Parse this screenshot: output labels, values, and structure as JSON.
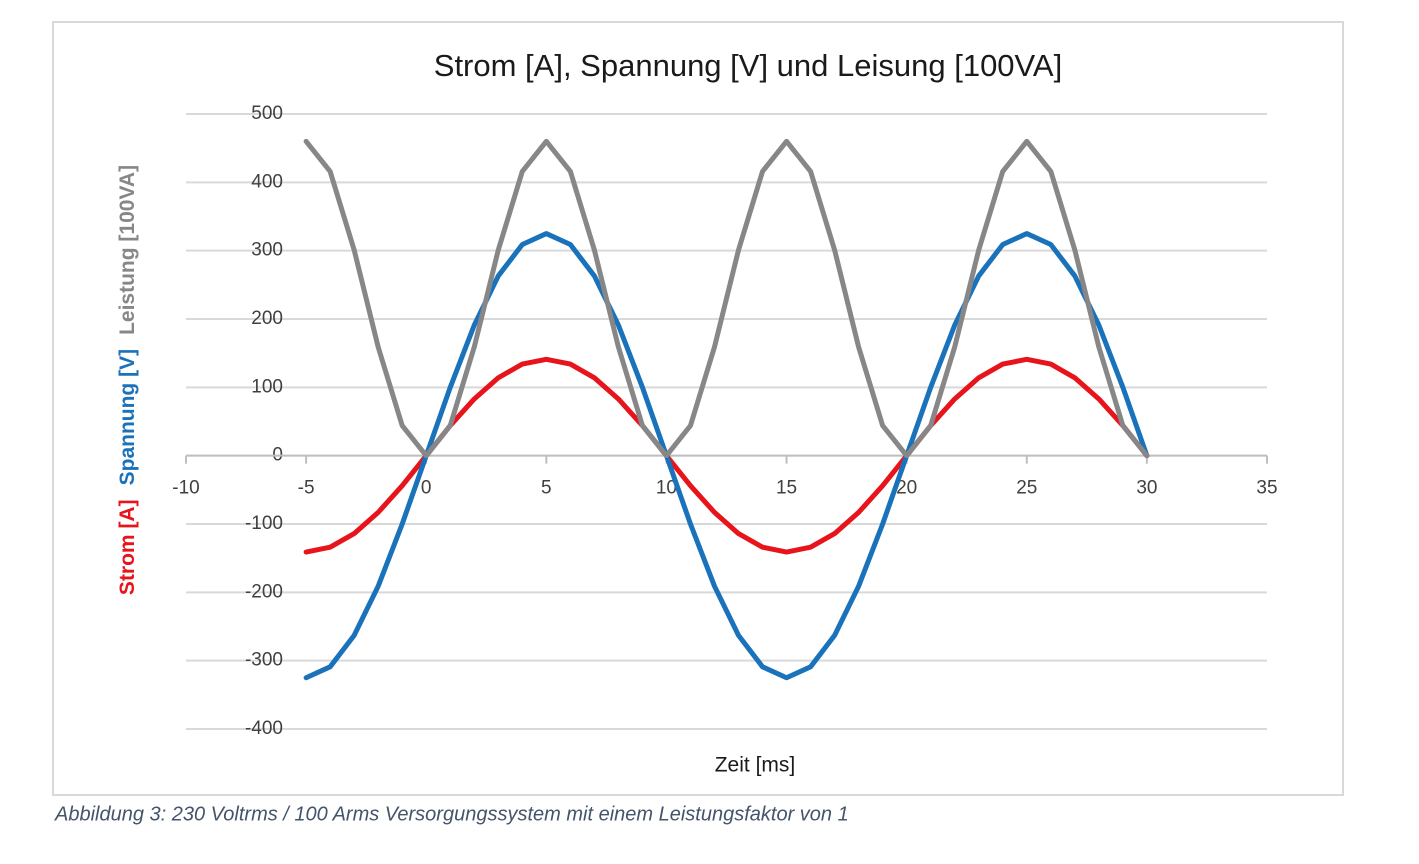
{
  "chart_data": {
    "type": "line",
    "title": "Strom [A], Spannung [V] und Leisung [100VA]",
    "x_label": "Zeit [ms]",
    "caption": "Abbildung 3: 230 Voltrms / 100 Arms Versorgungssystem mit einem Leistungsfaktor von 1",
    "x": [
      -5,
      -4,
      -3,
      -2,
      -1,
      0,
      1,
      2,
      3,
      4,
      5,
      6,
      7,
      8,
      9,
      10,
      11,
      12,
      13,
      14,
      15,
      16,
      17,
      18,
      19,
      20,
      21,
      22,
      23,
      24,
      25,
      26,
      27,
      28,
      29,
      30
    ],
    "series": [
      {
        "name": "Strom [A]",
        "color": "#e8141b",
        "values": [
          -141,
          -134,
          -114,
          -83,
          -44,
          0,
          44,
          83,
          114,
          134,
          141,
          134,
          114,
          83,
          44,
          0,
          -44,
          -83,
          -114,
          -134,
          -141,
          -134,
          -114,
          -83,
          -44,
          0,
          44,
          83,
          114,
          134,
          141,
          134,
          114,
          83,
          44,
          0
        ]
      },
      {
        "name": "Spannung [V]",
        "color": "#1a72bb",
        "values": [
          -325,
          -309,
          -263,
          -191,
          -100,
          0,
          100,
          191,
          263,
          309,
          325,
          309,
          263,
          191,
          100,
          0,
          -100,
          -191,
          -263,
          -309,
          -325,
          -309,
          -263,
          -191,
          -100,
          0,
          100,
          191,
          263,
          309,
          325,
          309,
          263,
          191,
          100,
          0
        ]
      },
      {
        "name": "Leistung [100VA]",
        "color": "#878787",
        "values": [
          460,
          416,
          301,
          159,
          44,
          0,
          44,
          159,
          301,
          416,
          460,
          416,
          301,
          159,
          44,
          0,
          44,
          159,
          301,
          416,
          460,
          416,
          301,
          159,
          44,
          0,
          44,
          159,
          301,
          416,
          460,
          416,
          301,
          159,
          44,
          0
        ]
      }
    ],
    "xlim": [
      -10,
      35
    ],
    "xticks": [
      -10,
      -5,
      0,
      5,
      10,
      15,
      20,
      25,
      30,
      35
    ],
    "ylim": [
      -400,
      500
    ],
    "yticks": [
      -400,
      -300,
      -200,
      -100,
      0,
      100,
      200,
      300,
      400,
      500
    ],
    "grid": true
  }
}
